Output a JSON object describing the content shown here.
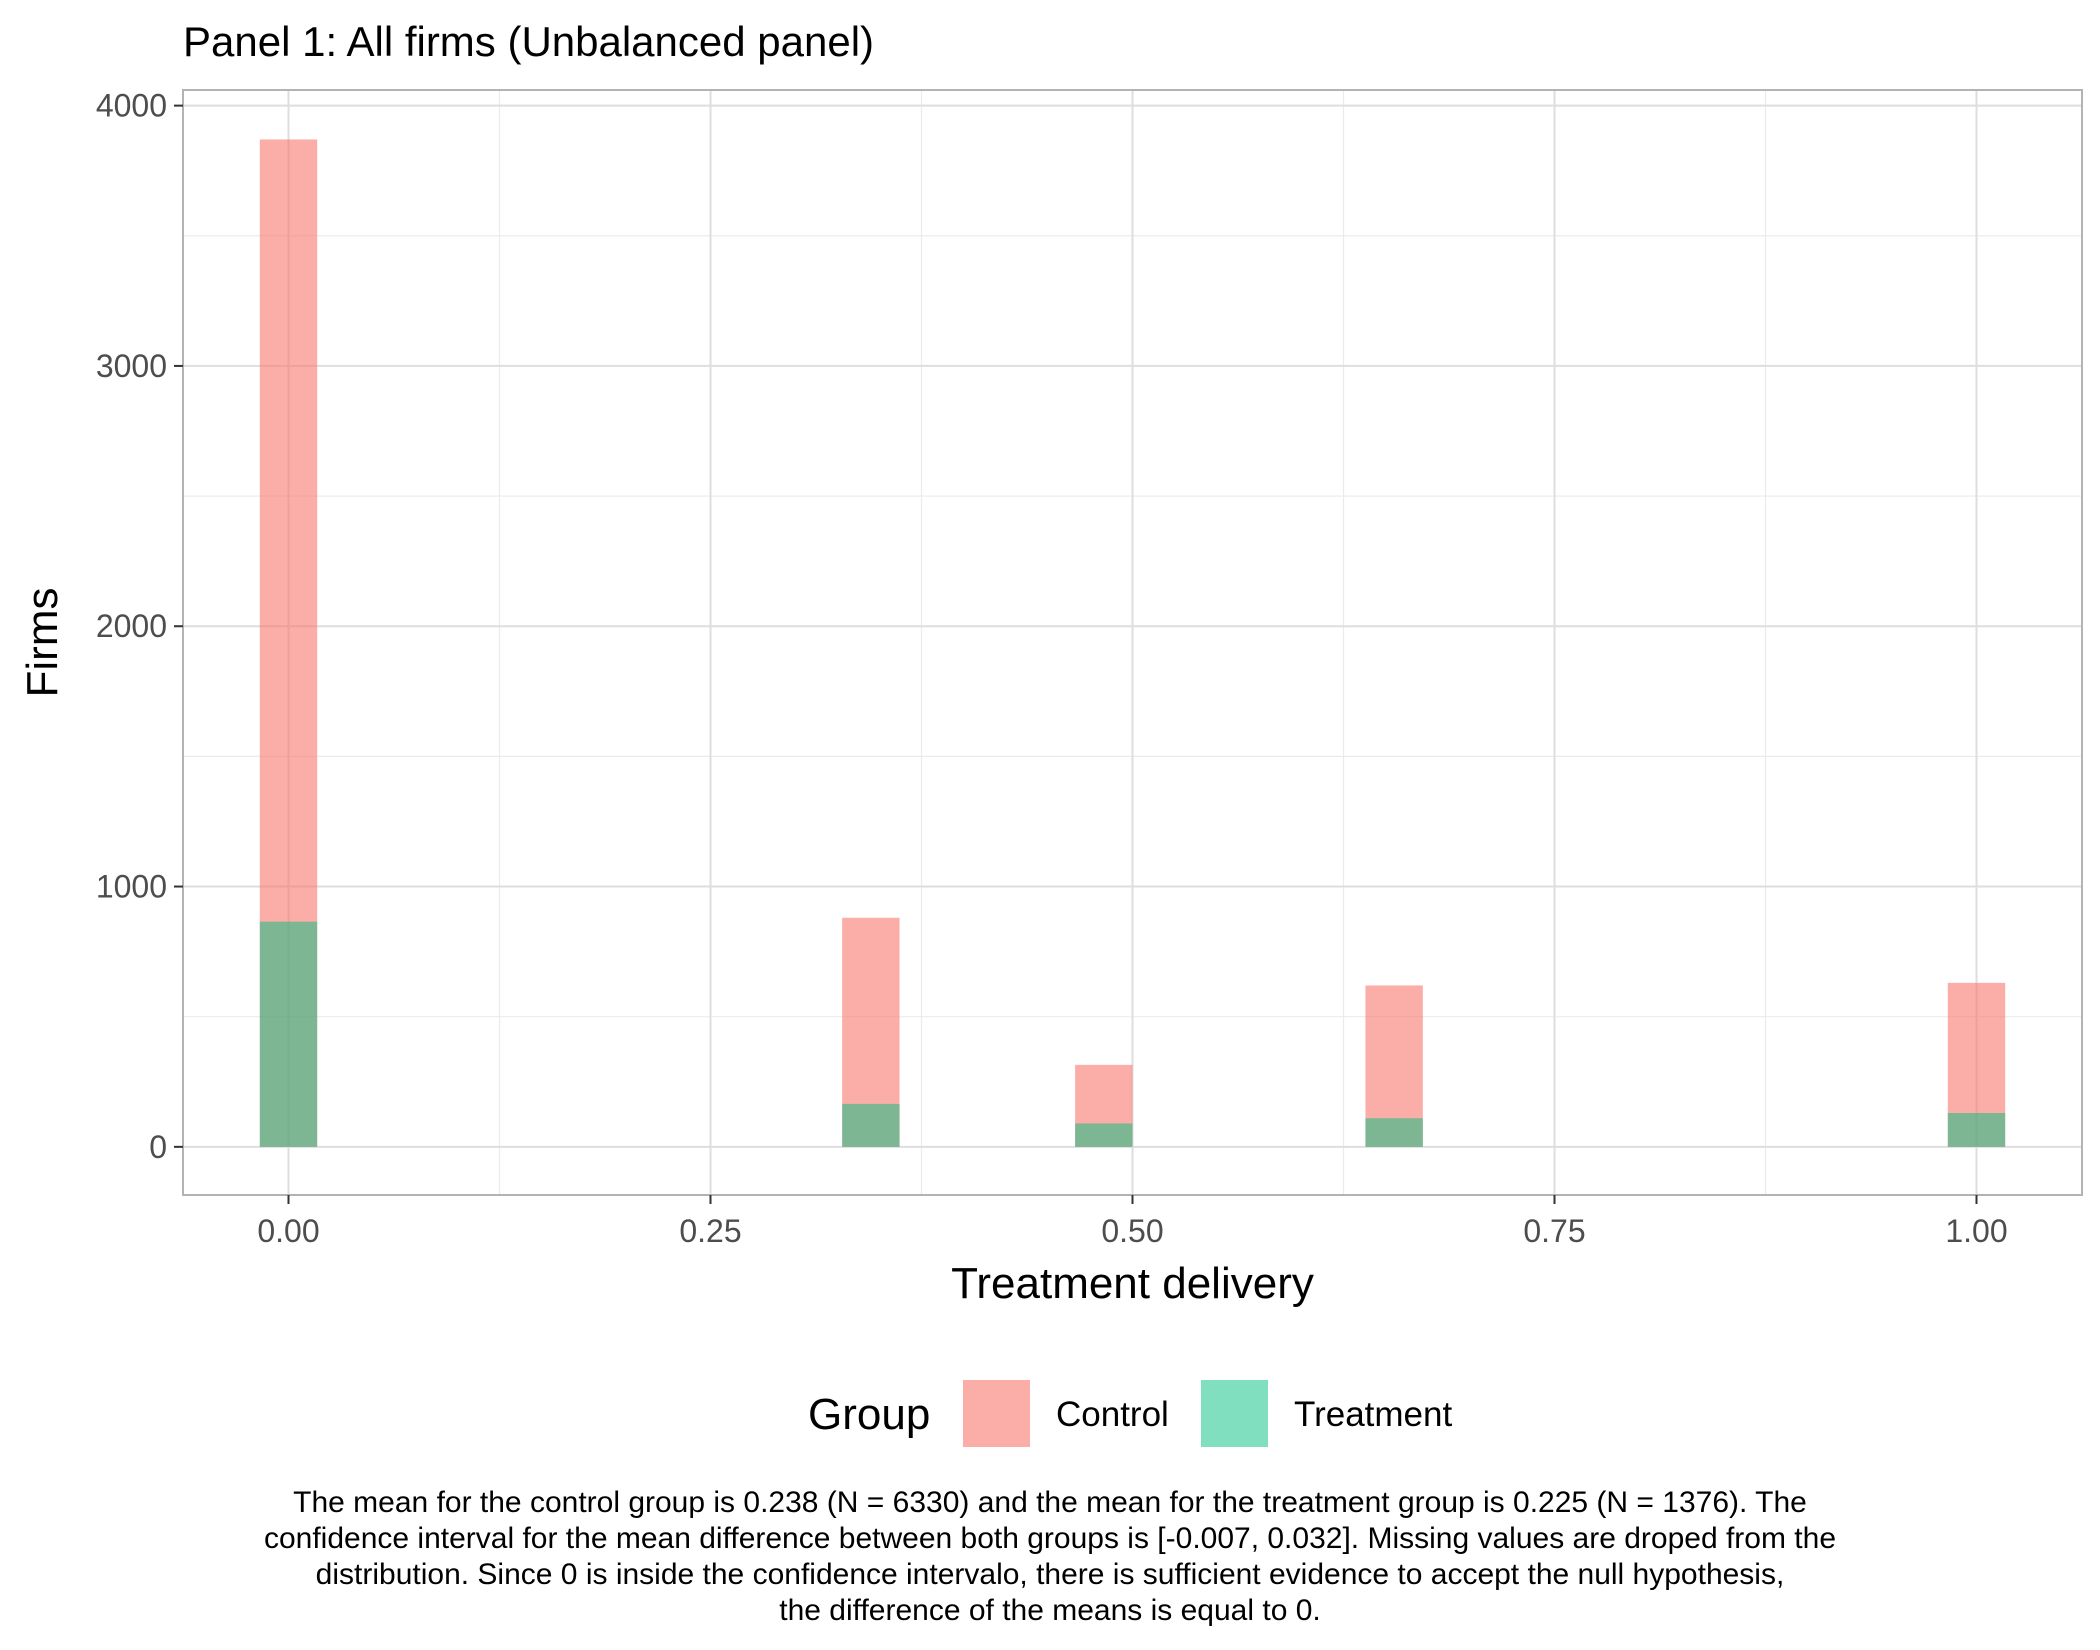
{
  "chart_data": {
    "type": "bar",
    "title": "Panel 1: All firms (Unbalanced panel)",
    "xlabel": "Treatment delivery",
    "ylabel": "Firms",
    "xlim": [
      -0.0625,
      1.0625
    ],
    "ylim": [
      -185,
      4060
    ],
    "x_ticks": [
      0,
      0.25,
      0.5,
      0.75,
      1
    ],
    "x_tick_labels": [
      "0.00",
      "0.25",
      "0.50",
      "0.75",
      "1.00"
    ],
    "y_ticks": [
      0,
      1000,
      2000,
      3000,
      4000
    ],
    "y_tick_labels": [
      "0",
      "1000",
      "2000",
      "3000",
      "4000"
    ],
    "grid": true,
    "bar_width": 0.034,
    "legend": {
      "title": "Group",
      "position": "bottom"
    },
    "series": [
      {
        "name": "Control",
        "color": "#F8766D",
        "opacity": 0.6,
        "x": [
          0.0,
          0.345,
          0.483,
          0.655,
          1.0
        ],
        "values": [
          3870,
          880,
          315,
          620,
          630
        ]
      },
      {
        "name": "Treatment",
        "color": "#00BF7D",
        "opacity": 0.5,
        "x": [
          0.0,
          0.345,
          0.483,
          0.655,
          1.0
        ],
        "values": [
          865,
          165,
          90,
          110,
          130
        ]
      }
    ]
  },
  "caption_lines": [
    "The mean for the control group is 0.238 (N = 6330) and the mean for the treatment group is 0.225 (N = 1376). The",
    "confidence interval for the mean difference between both groups is [-0.007, 0.032]. Missing values are droped from the",
    "distribution. Since 0 is inside the confidence intervalo, there is sufficient evidence to accept the null hypothesis,",
    "the difference of the means is equal to 0."
  ]
}
